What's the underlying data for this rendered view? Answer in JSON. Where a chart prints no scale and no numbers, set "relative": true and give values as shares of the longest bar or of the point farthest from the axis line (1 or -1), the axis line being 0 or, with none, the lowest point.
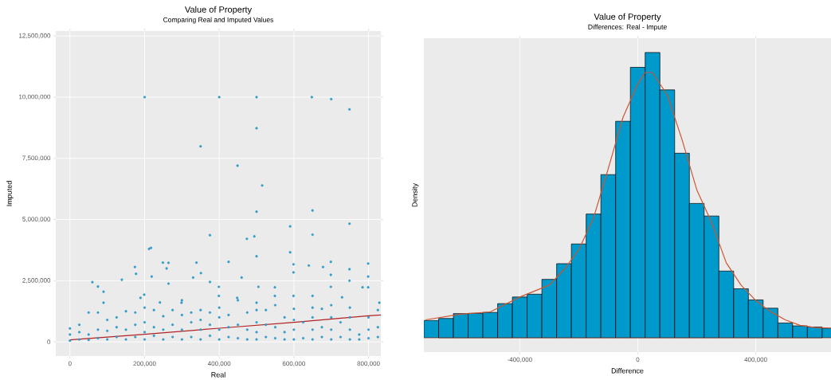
{
  "chart_data": [
    {
      "type": "scatter",
      "title": "Value of Property",
      "subtitle": "Comparing Real and Imputed Values",
      "xlabel": "Real",
      "ylabel": "Imputed",
      "xlim": [
        -38000,
        833000
      ],
      "ylim": [
        -580000,
        12700000
      ],
      "xticks": [
        0,
        {
          "value": 200000,
          "label": "200,000"
        },
        {
          "value": 400000,
          "label": "400,000"
        },
        {
          "value": 600000,
          "label": "600,000"
        },
        {
          "value": 800000,
          "label": "800,000"
        }
      ],
      "yticks": [
        0,
        {
          "value": 2500000,
          "label": "2,500,000"
        },
        {
          "value": 5000000,
          "label": "5,000,000"
        },
        {
          "value": 7500000,
          "label": "7,500,000"
        },
        {
          "value": 10000000,
          "label": "10,000,000"
        },
        {
          "value": 12500000,
          "label": "12,500,000"
        }
      ],
      "grid": true,
      "marker": "circle",
      "series": [
        {
          "color": "#2fa3d3",
          "x": [
            200000,
            400000,
            500000,
            500000,
            350000,
            449000,
            515000,
            648000,
            700000,
            749000,
            500000,
            650000,
            749000,
            590000,
            650000,
            375000,
            474000,
            494000,
            500000,
            590000,
            217000,
            212000,
            425000,
            339000,
            249000,
            264000,
            259000,
            174000,
            177000,
            599000,
            640000,
            678000,
            699000,
            799000,
            749000,
            699000,
            799000,
            599000,
            139000,
            60000,
            75000,
            90000,
            90000,
            219000,
            264000,
            330000,
            351000,
            375000,
            399000,
            460000,
            505000,
            549000,
            699000,
            799000,
            749000,
            784000,
            729000,
            829000,
            189000,
            199000,
            241000,
            299000,
            399000,
            448000,
            500000,
            599000,
            650000,
            549000,
            0,
            0,
            0,
            25000,
            25000,
            25000,
            50000,
            50000,
            50000,
            75000,
            75000,
            75000,
            100000,
            100000,
            100000,
            125000,
            125000,
            125000,
            150000,
            150000,
            150000,
            175000,
            175000,
            175000,
            200000,
            200000,
            200000,
            200000,
            225000,
            225000,
            225000,
            250000,
            250000,
            250000,
            275000,
            275000,
            275000,
            300000,
            300000,
            300000,
            300000,
            325000,
            325000,
            325000,
            350000,
            350000,
            350000,
            350000,
            375000,
            375000,
            375000,
            400000,
            400000,
            400000,
            400000,
            425000,
            425000,
            425000,
            450000,
            450000,
            450000,
            475000,
            475000,
            475000,
            500000,
            500000,
            500000,
            500000,
            525000,
            525000,
            525000,
            550000,
            550000,
            550000,
            575000,
            575000,
            575000,
            600000,
            600000,
            600000,
            600000,
            625000,
            625000,
            650000,
            650000,
            650000,
            650000,
            675000,
            675000,
            675000,
            700000,
            700000,
            700000,
            700000,
            725000,
            725000,
            750000,
            750000,
            750000,
            750000,
            775000,
            775000,
            800000,
            800000,
            800000,
            825000,
            825000,
            825000
          ],
          "values": [
            10000000,
            10000000,
            10000000,
            8730000,
            7990000,
            7200000,
            6390000,
            10000000,
            9920000,
            9500000,
            5320000,
            5370000,
            4830000,
            4720000,
            4380000,
            4360000,
            4210000,
            4310000,
            3500000,
            3660000,
            3840000,
            3800000,
            3270000,
            3240000,
            3240000,
            3230000,
            3000000,
            3060000,
            2780000,
            3170000,
            3120000,
            3060000,
            3270000,
            3200000,
            2970000,
            2740000,
            2670000,
            2840000,
            2540000,
            2440000,
            2260000,
            2050000,
            1600000,
            2670000,
            2380000,
            2630000,
            2810000,
            2450000,
            2250000,
            2630000,
            2250000,
            2230000,
            2250000,
            2230000,
            2500000,
            2230000,
            1820000,
            1600000,
            1800000,
            1930000,
            1610000,
            1600000,
            1880000,
            1800000,
            1600000,
            1880000,
            1880000,
            1880000,
            50000,
            300000,
            550000,
            100000,
            400000,
            700000,
            80000,
            300000,
            1200000,
            150000,
            500000,
            1200000,
            100000,
            450000,
            900000,
            200000,
            600000,
            1000000,
            100000,
            500000,
            1250000,
            200000,
            700000,
            1200000,
            100000,
            400000,
            800000,
            1400000,
            250000,
            600000,
            1300000,
            100000,
            500000,
            1050000,
            200000,
            700000,
            1300000,
            100000,
            500000,
            1100000,
            1700000,
            200000,
            800000,
            1200000,
            100000,
            500000,
            900000,
            1300000,
            250000,
            700000,
            1200000,
            100000,
            500000,
            1000000,
            1400000,
            200000,
            600000,
            1100000,
            150000,
            700000,
            1700000,
            100000,
            500000,
            1200000,
            100000,
            400000,
            800000,
            1300000,
            200000,
            700000,
            1300000,
            150000,
            600000,
            1500000,
            100000,
            400000,
            1000000,
            100000,
            500000,
            900000,
            1350000,
            150000,
            800000,
            100000,
            500000,
            1000000,
            1400000,
            200000,
            600000,
            1350000,
            100000,
            500000,
            1000000,
            1500000,
            200000,
            800000,
            100000,
            500000,
            1000000,
            1400000,
            100000,
            300000,
            150000,
            500000,
            1000000,
            200000,
            600000,
            1300000
          ]
        },
        {
          "type": "line",
          "color": "#b22222",
          "marker": "none",
          "x": [
            0,
            200000,
            400000,
            600000,
            800000,
            833000
          ],
          "values": [
            80000,
            310000,
            560000,
            800000,
            1070000,
            1100000
          ]
        }
      ]
    },
    {
      "type": "histogram",
      "title": "Value of Property",
      "subtitle": "Differences: Real - Impute",
      "xlabel": "Difference",
      "ylabel": "Density",
      "relative": true,
      "xlim": [
        -725000,
        655000
      ],
      "xticks": [
        {
          "value": -400000,
          "label": "-400,000"
        },
        0,
        {
          "value": 400000,
          "label": "400,000"
        }
      ],
      "grid": "x",
      "tick_labels": "x",
      "bins": [
        -725000,
        -675000,
        -625000,
        -575000,
        -525000,
        -475000,
        -425000,
        -375000,
        -325000,
        -275000,
        -225000,
        -175000,
        -125000,
        -75000,
        -25000,
        25000,
        75000,
        125000,
        175000,
        225000,
        275000,
        325000,
        375000,
        425000,
        475000,
        525000,
        575000,
        625000,
        675000
      ],
      "series": [
        {
          "color": "#0099cc",
          "values": [
            0.061,
            0.068,
            0.085,
            0.086,
            0.089,
            0.12,
            0.143,
            0.153,
            0.205,
            0.26,
            0.329,
            0.434,
            0.572,
            0.759,
            0.948,
            1,
            0.869,
            0.647,
            0.471,
            0.427,
            0.234,
            0.172,
            0.133,
            0.104,
            0.052,
            0.042,
            0.038,
            0.034
          ]
        },
        {
          "type": "line",
          "color": "#cc5533",
          "x": [
            -720000,
            -600000,
            -500000,
            -400000,
            -300000,
            -250000,
            -200000,
            -150000,
            -100000,
            -50000,
            0,
            25000,
            50000,
            100000,
            150000,
            200000,
            250000,
            300000,
            350000,
            400000,
            450000,
            500000,
            550000,
            600000,
            655000
          ],
          "values": [
            0.063,
            0.083,
            0.091,
            0.143,
            0.185,
            0.239,
            0.309,
            0.42,
            0.593,
            0.773,
            0.89,
            0.93,
            0.93,
            0.851,
            0.695,
            0.519,
            0.405,
            0.263,
            0.185,
            0.131,
            0.092,
            0.063,
            0.044,
            0.036,
            0.034
          ]
        }
      ]
    }
  ]
}
